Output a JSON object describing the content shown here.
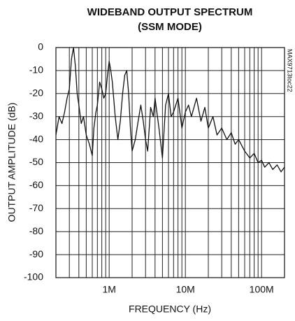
{
  "chart_data": {
    "type": "line",
    "title": "WIDEBAND OUTPUT SPECTRUM",
    "subtitle": "(SSM MODE)",
    "x_label": "FREQUENCY (Hz)",
    "y_label": "OUTPUT AMPLITUDE (dB)",
    "annotation": "MAX9713toc22",
    "log_x": true,
    "grid": true,
    "xlim": [
      200000,
      200000000
    ],
    "ylim": [
      -100,
      0
    ],
    "xticks": [
      {
        "value": 1000000,
        "label": "1M"
      },
      {
        "value": 10000000,
        "label": "10M"
      },
      {
        "value": 100000000,
        "label": "100M"
      }
    ],
    "xminorticks": [
      300000,
      400000,
      500000,
      600000,
      700000,
      800000,
      900000,
      2000000,
      3000000,
      4000000,
      5000000,
      6000000,
      7000000,
      8000000,
      9000000,
      20000000,
      30000000,
      40000000,
      50000000,
      60000000,
      70000000,
      80000000,
      90000000
    ],
    "yticks": [
      0,
      -10,
      -20,
      -30,
      -40,
      -50,
      -60,
      -70,
      -80,
      -90,
      -100
    ],
    "series": [
      {
        "name": "spectrum",
        "color": "#111111",
        "x": [
          200000,
          220000,
          240000,
          260000,
          280000,
          300000,
          320000,
          340000,
          360000,
          380000,
          400000,
          430000,
          460000,
          500000,
          550000,
          600000,
          630000,
          670000,
          700000,
          750000,
          800000,
          850000,
          900000,
          950000,
          1000000,
          1050000,
          1100000,
          1200000,
          1300000,
          1400000,
          1500000,
          1600000,
          1700000,
          1800000,
          1900000,
          2000000,
          2200000,
          2400000,
          2600000,
          2800000,
          3000000,
          3200000,
          3500000,
          3800000,
          4000000,
          4500000,
          5000000,
          5500000,
          6000000,
          6500000,
          7000000,
          8000000,
          9000000,
          10000000,
          11000000,
          12000000,
          14000000,
          16000000,
          18000000,
          20000000,
          23000000,
          26000000,
          30000000,
          35000000,
          40000000,
          45000000,
          50000000,
          60000000,
          70000000,
          80000000,
          90000000,
          100000000,
          110000000,
          125000000,
          140000000,
          160000000,
          180000000,
          200000000
        ],
        "values": [
          -38,
          -30,
          -33,
          -28,
          -22,
          -18,
          -5,
          0,
          -8,
          -20,
          -25,
          -33,
          -30,
          -38,
          -42,
          -47,
          -35,
          -28,
          -25,
          -15,
          -18,
          -22,
          -20,
          -12,
          -6,
          -10,
          -15,
          -30,
          -40,
          -32,
          -20,
          -12,
          -10,
          -20,
          -35,
          -45,
          -40,
          -32,
          -25,
          -32,
          -40,
          -45,
          -26,
          -30,
          -22,
          -35,
          -48,
          -25,
          -20,
          -30,
          -28,
          -22,
          -35,
          -28,
          -25,
          -30,
          -22,
          -32,
          -26,
          -35,
          -30,
          -38,
          -35,
          -40,
          -37,
          -42,
          -40,
          -45,
          -48,
          -46,
          -50,
          -49,
          -52,
          -50,
          -53,
          -51,
          -54,
          -52
        ]
      }
    ]
  }
}
